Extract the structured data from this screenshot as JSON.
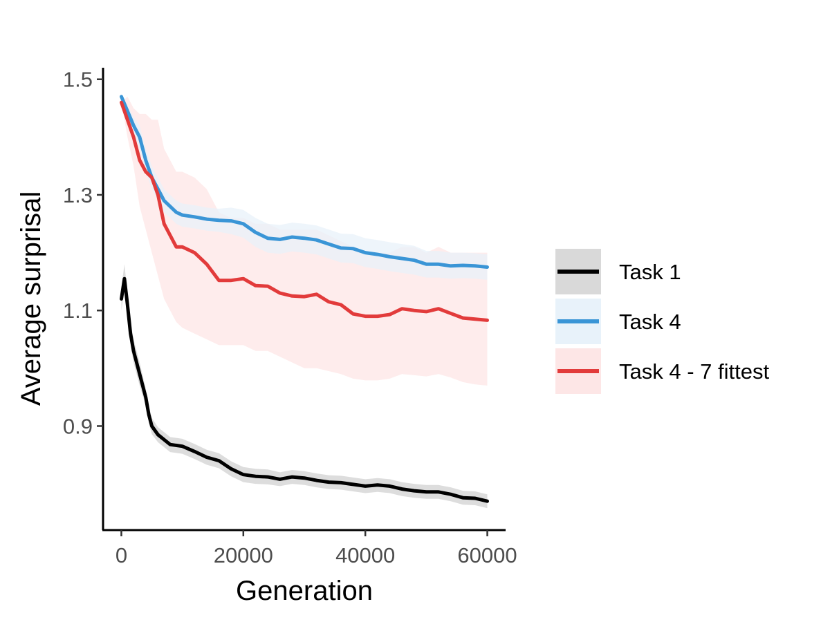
{
  "chart_data": {
    "type": "line",
    "xlabel": "Generation",
    "ylabel": "Average surprisal",
    "xlim": [
      -3000,
      63000
    ],
    "ylim": [
      0.72,
      1.52
    ],
    "x_ticks": [
      0,
      20000,
      40000,
      60000
    ],
    "x_tick_labels": [
      "0",
      "20000",
      "40000",
      "60000"
    ],
    "y_ticks": [
      0.9,
      1.1,
      1.3,
      1.5
    ],
    "y_tick_labels": [
      "0.9",
      "1.1",
      "1.3",
      "1.5"
    ],
    "grid": false,
    "legend_position": "right",
    "series": [
      {
        "name": "Task 1",
        "color": "#000000",
        "band_color": "#d9d9d9",
        "x": [
          0,
          500,
          1000,
          1500,
          2000,
          3000,
          4000,
          4500,
          5000,
          6000,
          8000,
          10000,
          12000,
          14000,
          16000,
          18000,
          20000,
          22000,
          24000,
          26000,
          28000,
          30000,
          32000,
          34000,
          36000,
          38000,
          40000,
          42000,
          44000,
          46000,
          48000,
          50000,
          52000,
          54000,
          56000,
          58000,
          60000
        ],
        "y": [
          1.12,
          1.155,
          1.11,
          1.06,
          1.03,
          0.99,
          0.95,
          0.92,
          0.9,
          0.885,
          0.868,
          0.865,
          0.856,
          0.846,
          0.84,
          0.826,
          0.816,
          0.813,
          0.812,
          0.808,
          0.812,
          0.81,
          0.806,
          0.803,
          0.802,
          0.799,
          0.796,
          0.798,
          0.796,
          0.791,
          0.788,
          0.786,
          0.786,
          0.782,
          0.776,
          0.775,
          0.77
        ],
        "lower": [
          1.1,
          1.135,
          1.09,
          1.04,
          1.01,
          0.97,
          0.935,
          0.905,
          0.886,
          0.872,
          0.855,
          0.852,
          0.843,
          0.833,
          0.827,
          0.813,
          0.803,
          0.8,
          0.799,
          0.796,
          0.8,
          0.798,
          0.794,
          0.791,
          0.79,
          0.787,
          0.784,
          0.786,
          0.784,
          0.779,
          0.776,
          0.774,
          0.774,
          0.77,
          0.764,
          0.763,
          0.758
        ],
        "upper": [
          1.14,
          1.18,
          1.13,
          1.08,
          1.05,
          1.01,
          0.965,
          0.935,
          0.914,
          0.898,
          0.881,
          0.878,
          0.869,
          0.859,
          0.853,
          0.839,
          0.829,
          0.826,
          0.825,
          0.82,
          0.824,
          0.822,
          0.818,
          0.815,
          0.814,
          0.811,
          0.808,
          0.81,
          0.808,
          0.803,
          0.8,
          0.798,
          0.798,
          0.794,
          0.788,
          0.787,
          0.782
        ]
      },
      {
        "name": "Task 4",
        "color": "#3a95d6",
        "band_color": "#e8f2fa",
        "x": [
          0,
          1000,
          2000,
          3000,
          4000,
          5000,
          6000,
          7000,
          8000,
          9000,
          10000,
          12000,
          14000,
          16000,
          18000,
          20000,
          22000,
          24000,
          26000,
          28000,
          30000,
          32000,
          34000,
          36000,
          38000,
          40000,
          42000,
          44000,
          46000,
          48000,
          50000,
          52000,
          54000,
          56000,
          58000,
          60000
        ],
        "y": [
          1.47,
          1.445,
          1.42,
          1.4,
          1.36,
          1.33,
          1.31,
          1.29,
          1.28,
          1.27,
          1.265,
          1.262,
          1.258,
          1.256,
          1.255,
          1.25,
          1.235,
          1.225,
          1.223,
          1.227,
          1.225,
          1.222,
          1.215,
          1.208,
          1.207,
          1.2,
          1.197,
          1.193,
          1.19,
          1.187,
          1.18,
          1.18,
          1.177,
          1.178,
          1.177,
          1.175
        ],
        "lower": [
          1.47,
          1.435,
          1.405,
          1.38,
          1.34,
          1.31,
          1.29,
          1.27,
          1.26,
          1.25,
          1.245,
          1.242,
          1.238,
          1.236,
          1.232,
          1.226,
          1.21,
          1.2,
          1.198,
          1.202,
          1.2,
          1.197,
          1.19,
          1.183,
          1.182,
          1.175,
          1.172,
          1.168,
          1.165,
          1.162,
          1.157,
          1.157,
          1.155,
          1.156,
          1.155,
          1.153
        ],
        "upper": [
          1.47,
          1.455,
          1.435,
          1.42,
          1.38,
          1.35,
          1.33,
          1.31,
          1.3,
          1.29,
          1.285,
          1.282,
          1.278,
          1.276,
          1.278,
          1.274,
          1.26,
          1.25,
          1.248,
          1.252,
          1.25,
          1.247,
          1.24,
          1.233,
          1.232,
          1.225,
          1.222,
          1.218,
          1.215,
          1.212,
          1.203,
          1.203,
          1.2,
          1.2,
          1.199,
          1.197
        ]
      },
      {
        "name": "Task 4 - 7 fittest",
        "color": "#e23b3b",
        "band_color": "#fde6e6",
        "x": [
          0,
          1000,
          2000,
          3000,
          4000,
          5000,
          6000,
          7000,
          8000,
          9000,
          10000,
          12000,
          14000,
          16000,
          18000,
          20000,
          22000,
          24000,
          26000,
          28000,
          30000,
          32000,
          34000,
          36000,
          38000,
          40000,
          42000,
          44000,
          46000,
          48000,
          50000,
          52000,
          54000,
          56000,
          58000,
          60000
        ],
        "y": [
          1.46,
          1.43,
          1.4,
          1.36,
          1.34,
          1.33,
          1.3,
          1.25,
          1.23,
          1.21,
          1.21,
          1.2,
          1.18,
          1.152,
          1.152,
          1.155,
          1.143,
          1.142,
          1.13,
          1.125,
          1.124,
          1.128,
          1.115,
          1.11,
          1.094,
          1.09,
          1.09,
          1.093,
          1.103,
          1.1,
          1.098,
          1.103,
          1.095,
          1.087,
          1.085,
          1.083
        ],
        "lower": [
          1.46,
          1.4,
          1.35,
          1.28,
          1.24,
          1.2,
          1.16,
          1.12,
          1.1,
          1.08,
          1.07,
          1.06,
          1.05,
          1.04,
          1.04,
          1.04,
          1.03,
          1.03,
          1.02,
          1.01,
          1.0,
          1.0,
          0.995,
          0.99,
          0.982,
          0.979,
          0.979,
          0.982,
          0.99,
          0.988,
          0.986,
          0.99,
          0.984,
          0.976,
          0.972,
          0.97
        ],
        "upper": [
          1.46,
          1.47,
          1.45,
          1.44,
          1.44,
          1.43,
          1.43,
          1.38,
          1.36,
          1.34,
          1.34,
          1.33,
          1.31,
          1.27,
          1.26,
          1.26,
          1.25,
          1.25,
          1.24,
          1.24,
          1.24,
          1.24,
          1.23,
          1.22,
          1.21,
          1.2,
          1.2,
          1.2,
          1.21,
          1.21,
          1.2,
          1.21,
          1.2,
          1.2,
          1.2,
          1.2
        ]
      }
    ]
  }
}
